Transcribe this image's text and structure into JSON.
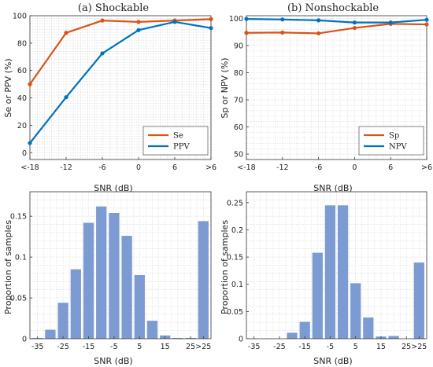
{
  "colors": {
    "red": "#D95319",
    "blue": "#0072BD",
    "bar": "#7B9BD2"
  },
  "chart_data": [
    {
      "type": "line",
      "title": "(a) Shockable",
      "xlabel": "SNR (dB)",
      "ylabel": "Se or PPV (%)",
      "categories": [
        "<-18",
        "-12",
        "-6",
        "0",
        "6",
        ">6"
      ],
      "ylim": [
        -5,
        100
      ],
      "yticks": [
        0,
        20,
        40,
        60,
        80,
        100
      ],
      "grid": true,
      "legend": "bottom-right",
      "series": [
        {
          "name": "Se",
          "color": "#D95319",
          "values": [
            50.0,
            87.5,
            96.5,
            95.5,
            96.5,
            97.5
          ]
        },
        {
          "name": "PPV",
          "color": "#0072BD",
          "values": [
            7.0,
            40.5,
            72.5,
            89.5,
            95.5,
            91.0
          ]
        }
      ]
    },
    {
      "type": "line",
      "title": "(b) Nonshockable",
      "xlabel": "SNR (dB)",
      "ylabel": "Sp or NPV (%)",
      "categories": [
        "<-18",
        "-12",
        "-6",
        "0",
        "6",
        ">6"
      ],
      "ylim": [
        48,
        101
      ],
      "yticks": [
        50,
        60,
        70,
        80,
        90,
        100
      ],
      "grid": true,
      "legend": "bottom-right",
      "series": [
        {
          "name": "Sp",
          "color": "#D95319",
          "values": [
            94.7,
            94.8,
            94.5,
            96.5,
            98.0,
            97.8
          ]
        },
        {
          "name": "NPV",
          "color": "#0072BD",
          "values": [
            99.8,
            99.6,
            99.3,
            98.5,
            98.5,
            99.5
          ]
        }
      ]
    },
    {
      "type": "bar",
      "xlabel": "SNR (dB)",
      "ylabel": "Proportion of samples",
      "x": [
        -35,
        -30,
        -25,
        -20,
        -15,
        -10,
        -5,
        0,
        5,
        10,
        15,
        20,
        25,
        30
      ],
      "values": [
        0.001,
        0.011,
        0.044,
        0.085,
        0.142,
        0.162,
        0.154,
        0.126,
        0.078,
        0.022,
        0.004,
        0.001,
        0.001,
        0.144
      ],
      "xticks": [
        "-35",
        "-25",
        "-15",
        "-5",
        "5",
        "15",
        "25",
        ">25"
      ],
      "xtick_positions": [
        -35,
        -25,
        -15,
        -5,
        5,
        15,
        25,
        30
      ],
      "ylim": [
        0,
        0.18
      ],
      "yticks": [
        "0",
        "0.05",
        "0.1",
        "0.15"
      ],
      "ytick_values": [
        0,
        0.05,
        0.1,
        0.15
      ],
      "grid": true
    },
    {
      "type": "bar",
      "xlabel": "SNR (dB)",
      "ylabel": "Proportion of samples",
      "x": [
        -35,
        -30,
        -25,
        -20,
        -15,
        -10,
        -5,
        0,
        5,
        10,
        15,
        20,
        25,
        30
      ],
      "values": [
        0.0,
        0.0,
        0.0,
        0.011,
        0.031,
        0.158,
        0.245,
        0.245,
        0.102,
        0.039,
        0.004,
        0.005,
        0.0,
        0.14
      ],
      "xticks": [
        "-35",
        "-25",
        "-15",
        "-5",
        "5",
        "15",
        "25",
        ">25"
      ],
      "xtick_positions": [
        -35,
        -25,
        -15,
        -5,
        5,
        15,
        25,
        30
      ],
      "ylim": [
        0,
        0.27
      ],
      "yticks": [
        "0",
        "0.05",
        "0.1",
        "0.15",
        "0.2",
        "0.25"
      ],
      "ytick_values": [
        0,
        0.05,
        0.1,
        0.15,
        0.2,
        0.25
      ],
      "grid": true
    }
  ]
}
